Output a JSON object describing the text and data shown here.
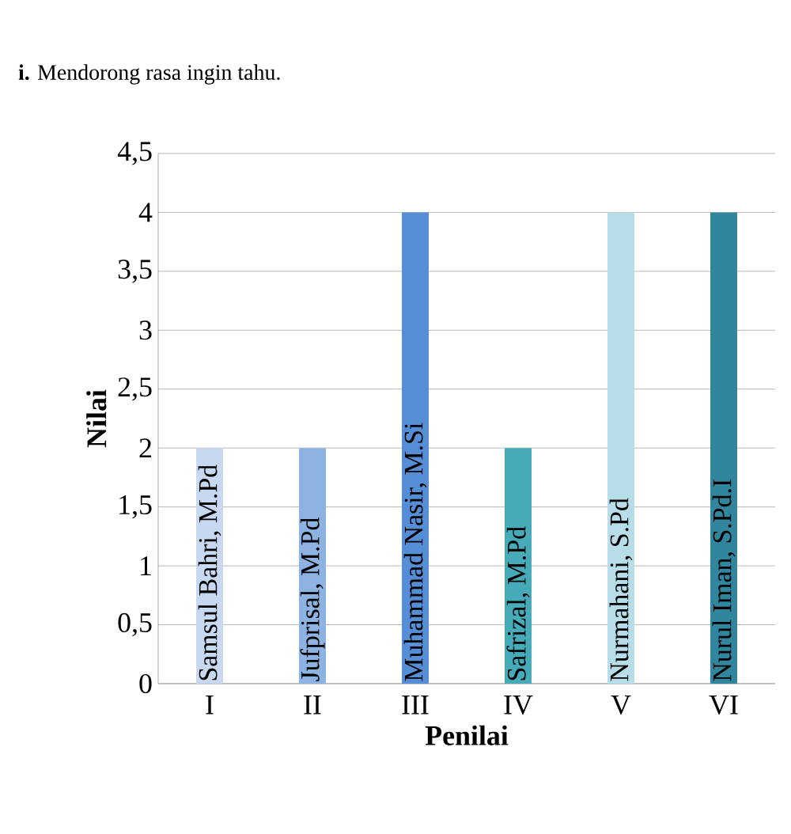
{
  "chart_data": {
    "type": "bar",
    "title": "**i.** Mendorong rasa ingin tahu.",
    "xlabel": "Penilai",
    "ylabel": "Nilai",
    "categories": [
      "I",
      "II",
      "III",
      "IV",
      "V",
      "VI"
    ],
    "values": [
      2,
      2,
      4,
      2,
      4,
      4
    ],
    "colors": [
      "#c6d9f0",
      "#8db3e2",
      "#558ed5",
      "#46aab9",
      "#b7dee8",
      "#31859c"
    ],
    "ylim": [
      0,
      4.5
    ],
    "yticks": [
      0,
      {
        "value": 0.5,
        "label": "0,5"
      },
      1,
      {
        "value": 1.5,
        "label": "1,5"
      },
      2,
      {
        "value": 2.5,
        "label": "2,5"
      },
      3,
      {
        "value": 3.5,
        "label": "3,5"
      },
      4,
      {
        "value": 4.5,
        "label": "4,5"
      }
    ],
    "grid": "y",
    "annotations": [
      {
        "text": "Samsul Bahri, M.Pd",
        "x": "I",
        "y": 0
      },
      {
        "text": "Jufprisal, M.Pd",
        "x": "II",
        "y": 0
      },
      {
        "text": "Muhammad Nasir, M.Si",
        "x": "III",
        "y": 0
      },
      {
        "text": "Safrizal, M.Pd",
        "x": "IV",
        "y": 0
      },
      {
        "text": "Nurmahani, S.Pd",
        "x": "V",
        "y": 0
      },
      {
        "text": "Nurul Iman, S.Pd.I",
        "x": "VI",
        "y": 0
      }
    ]
  }
}
